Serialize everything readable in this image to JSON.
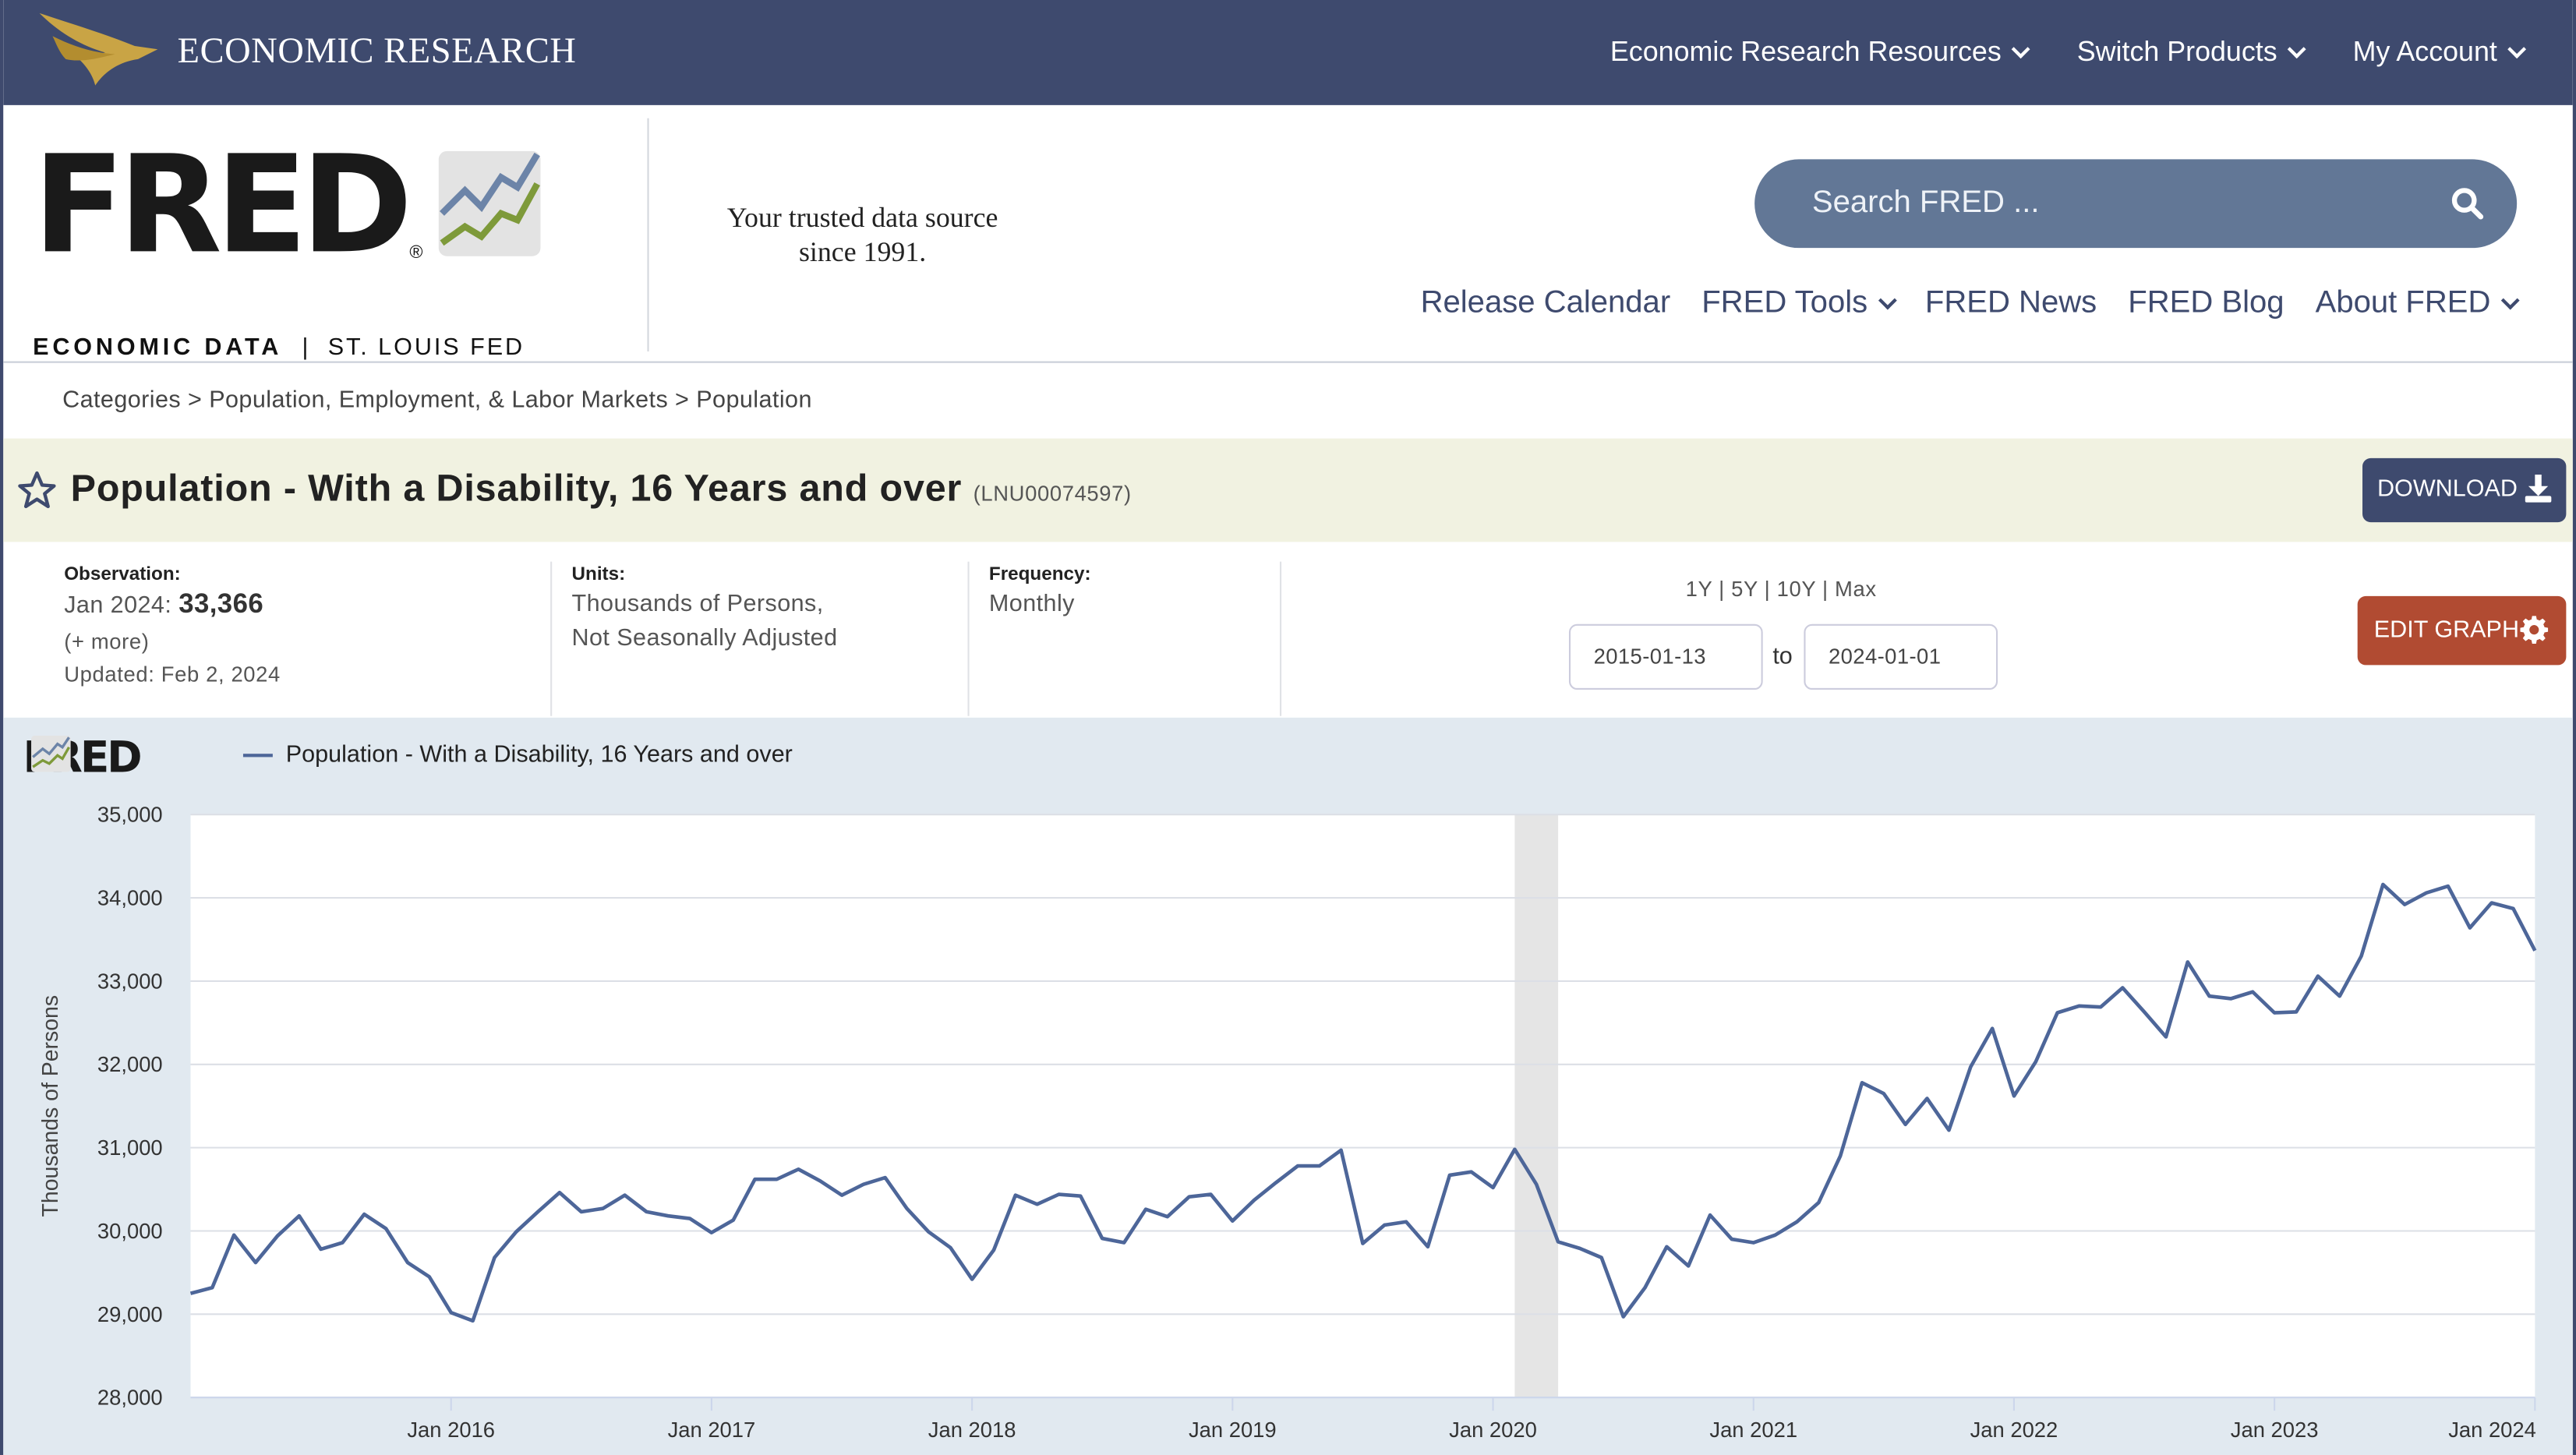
{
  "topbar": {
    "brand": "ECONOMIC RESEARCH",
    "nav": [
      {
        "label": "Economic Research Resources"
      },
      {
        "label": "Switch Products"
      },
      {
        "label": "My Account"
      }
    ]
  },
  "header": {
    "logo_word": "FRED",
    "logo_registered": "®",
    "logo_sub_left": "ECONOMIC DATA",
    "logo_sub_sep": "|",
    "logo_sub_right": "ST. LOUIS FED",
    "tagline_line1": "Your trusted data source",
    "tagline_line2": "since 1991.",
    "search_placeholder": "Search FRED ...",
    "nav": [
      {
        "label": "Release Calendar"
      },
      {
        "label": "FRED Tools"
      },
      {
        "label": "FRED News"
      },
      {
        "label": "FRED Blog"
      },
      {
        "label": "About FRED"
      }
    ]
  },
  "breadcrumb": "Categories > Population, Employment, & Labor Markets > Population",
  "series": {
    "title": "Population - With a Disability, 16 Years and over",
    "id": "(LNU00074597)",
    "download_label": "DOWNLOAD"
  },
  "meta": {
    "observation_label": "Observation:",
    "observation_date": "Jan 2024:",
    "observation_value": "33,366",
    "more": "(+ more)",
    "updated": "Updated: Feb 2, 2024",
    "units_label": "Units:",
    "units_line1": "Thousands of Persons,",
    "units_line2": "Not Seasonally Adjusted",
    "frequency_label": "Frequency:",
    "frequency": "Monthly",
    "ranges": "1Y | 5Y | 10Y | Max",
    "date_from": "2015-01-13",
    "date_to": "2024-01-01",
    "to_label": "to",
    "edit_label": "EDIT GRAPH"
  },
  "chart_data": {
    "type": "line",
    "legend": "Population - With a Disability, 16 Years and over",
    "ylabel": "Thousands of Persons",
    "ylim": [
      28000,
      35000
    ],
    "yticks": [
      "28,000",
      "29,000",
      "30,000",
      "31,000",
      "32,000",
      "33,000",
      "34,000",
      "35,000"
    ],
    "xticks": [
      "Jan 2016",
      "Jan 2017",
      "Jan 2018",
      "Jan 2019",
      "Jan 2020",
      "Jan 2021",
      "Jan 2022",
      "Jan 2023",
      "Jan 2024"
    ],
    "recession": {
      "start": "2020-02",
      "end": "2020-04"
    },
    "series_color": "#4d6699",
    "x_start": "2015-01",
    "values": [
      29250,
      29320,
      29950,
      29620,
      29940,
      30180,
      29780,
      29860,
      30200,
      30030,
      29620,
      29450,
      29020,
      28920,
      29680,
      29990,
      30230,
      30460,
      30230,
      30270,
      30430,
      30230,
      30180,
      30150,
      29980,
      30130,
      30620,
      30620,
      30740,
      30600,
      30430,
      30560,
      30640,
      30270,
      29990,
      29800,
      29420,
      29770,
      30430,
      30320,
      30440,
      30420,
      29910,
      29860,
      30260,
      30170,
      30410,
      30440,
      30120,
      30370,
      30580,
      30780,
      30780,
      30970,
      29850,
      30070,
      30110,
      29810,
      30670,
      30710,
      30520,
      30980,
      30560,
      29870,
      29790,
      29680,
      28970,
      29320,
      29810,
      29580,
      30190,
      29900,
      29860,
      29950,
      30110,
      30340,
      30900,
      31780,
      31650,
      31280,
      31590,
      31210,
      31970,
      32430,
      31620,
      32030,
      32620,
      32700,
      32690,
      32920,
      32630,
      32330,
      33230,
      32820,
      32790,
      32870,
      32620,
      32630,
      33060,
      32820,
      33300,
      34160,
      33920,
      34060,
      34140,
      33640,
      33940,
      33870,
      33366
    ]
  }
}
